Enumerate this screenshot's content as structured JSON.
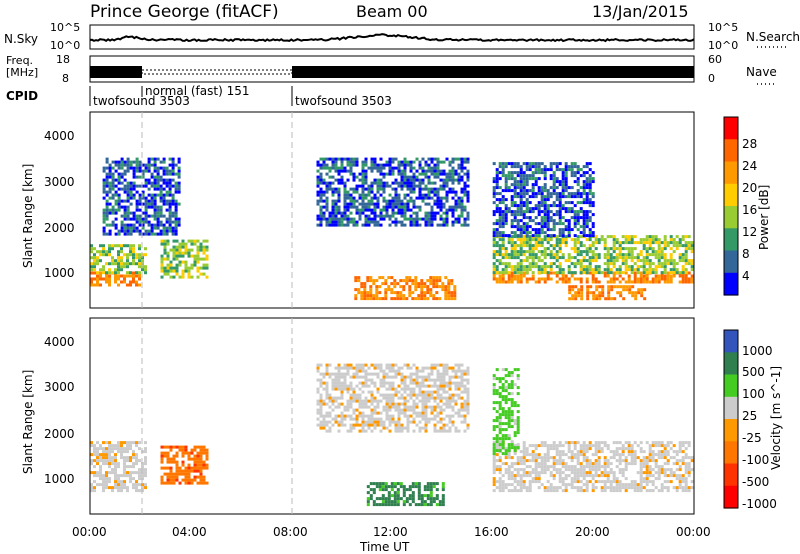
{
  "header": {
    "station": "Prince George (fitACF)",
    "beam": "Beam 00",
    "date": "13/Jan/2015"
  },
  "noise_panel": {
    "left_label": "N.Sky",
    "right_label": "N.Search",
    "left_ticks": [
      "10^5",
      "10^0"
    ],
    "right_ticks": [
      "10^5",
      "10^0"
    ]
  },
  "freq_panel": {
    "left_label_1": "Freq.",
    "left_label_2": "[MHz]",
    "right_label": "Nave",
    "left_ticks": [
      "18",
      "8"
    ],
    "right_ticks": [
      "60",
      "0"
    ]
  },
  "cpid": {
    "label": "CPID",
    "segments": [
      {
        "name": "twofsound 3503",
        "start_hour": 0,
        "end_hour": 2
      },
      {
        "name": "normal (fast) 151",
        "start_hour": 2,
        "end_hour": 8
      },
      {
        "name": "twofsound 3503",
        "start_hour": 8,
        "end_hour": 24
      }
    ]
  },
  "time_axis": {
    "label": "Time UT",
    "ticks": [
      "00:00",
      "04:00",
      "08:00",
      "12:00",
      "16:00",
      "20:00",
      "00:00"
    ]
  },
  "power_panel": {
    "ylabel": "Slant Range [km]",
    "yticks": [
      "4000",
      "3000",
      "2000",
      "1000"
    ],
    "colorbar_label": "Power [dB]",
    "colorbar_ticks": [
      "28",
      "24",
      "20",
      "16",
      "12",
      "8",
      "4"
    ],
    "colors": [
      "#ff0000",
      "#ff6600",
      "#ff9900",
      "#ffcc00",
      "#99cc33",
      "#339966",
      "#336699",
      "#0000ff"
    ]
  },
  "velocity_panel": {
    "ylabel": "Slant Range [km]",
    "yticks": [
      "4000",
      "3000",
      "2000",
      "1000"
    ],
    "colorbar_label": "Velocity [m s^-1]",
    "colorbar_ticks": [
      "1000",
      "500",
      "100",
      "25",
      "-25",
      "-100",
      "-500",
      "-1000"
    ],
    "colors": [
      "#3355bb",
      "#2f7f4f",
      "#44cc22",
      "#cccccc",
      "#ff9900",
      "#ff7700",
      "#ff3300",
      "#ff0000"
    ]
  },
  "chart_data": {
    "type": "heatmap",
    "x_range_hours": [
      0,
      24
    ],
    "y_range_km": [
      200,
      4500
    ],
    "cpid_change_hours": [
      2,
      8
    ],
    "power_regions": [
      {
        "t0": 0.0,
        "t1": 2.0,
        "r0": 700,
        "r1": 1000,
        "level": "high"
      },
      {
        "t0": 0.0,
        "t1": 2.2,
        "r0": 1000,
        "r1": 1600,
        "level": "medium"
      },
      {
        "t0": 0.5,
        "t1": 3.5,
        "r0": 1800,
        "r1": 3500,
        "level": "low"
      },
      {
        "t0": 2.8,
        "t1": 4.6,
        "r0": 850,
        "r1": 1700,
        "level": "medium"
      },
      {
        "t0": 10.5,
        "t1": 14.5,
        "r0": 400,
        "r1": 900,
        "level": "high"
      },
      {
        "t0": 9.0,
        "t1": 15.0,
        "r0": 2000,
        "r1": 3500,
        "level": "low"
      },
      {
        "t0": 16.0,
        "t1": 24.0,
        "r0": 750,
        "r1": 1000,
        "level": "high"
      },
      {
        "t0": 16.0,
        "t1": 24.0,
        "r0": 1000,
        "r1": 1800,
        "level": "medium"
      },
      {
        "t0": 19.0,
        "t1": 22.0,
        "r0": 400,
        "r1": 700,
        "level": "high"
      },
      {
        "t0": 16.0,
        "t1": 20.0,
        "r0": 1800,
        "r1": 3400,
        "level": "low"
      }
    ],
    "velocity_regions": [
      {
        "t0": 0.0,
        "t1": 2.2,
        "r0": 700,
        "r1": 1800,
        "class": "-25..25"
      },
      {
        "t0": 2.8,
        "t1": 4.6,
        "r0": 900,
        "r1": 1700,
        "class": "-100"
      },
      {
        "t0": 11.0,
        "t1": 14.0,
        "r0": 400,
        "r1": 900,
        "class": "500"
      },
      {
        "t0": 16.0,
        "t1": 24.0,
        "r0": 700,
        "r1": 1800,
        "class": "-25..25"
      },
      {
        "t0": 16.0,
        "t1": 17.0,
        "r0": 1500,
        "r1": 3400,
        "class": "100"
      },
      {
        "t0": 9.0,
        "t1": 15.0,
        "r0": 2000,
        "r1": 3500,
        "class": "-25..25"
      }
    ]
  }
}
